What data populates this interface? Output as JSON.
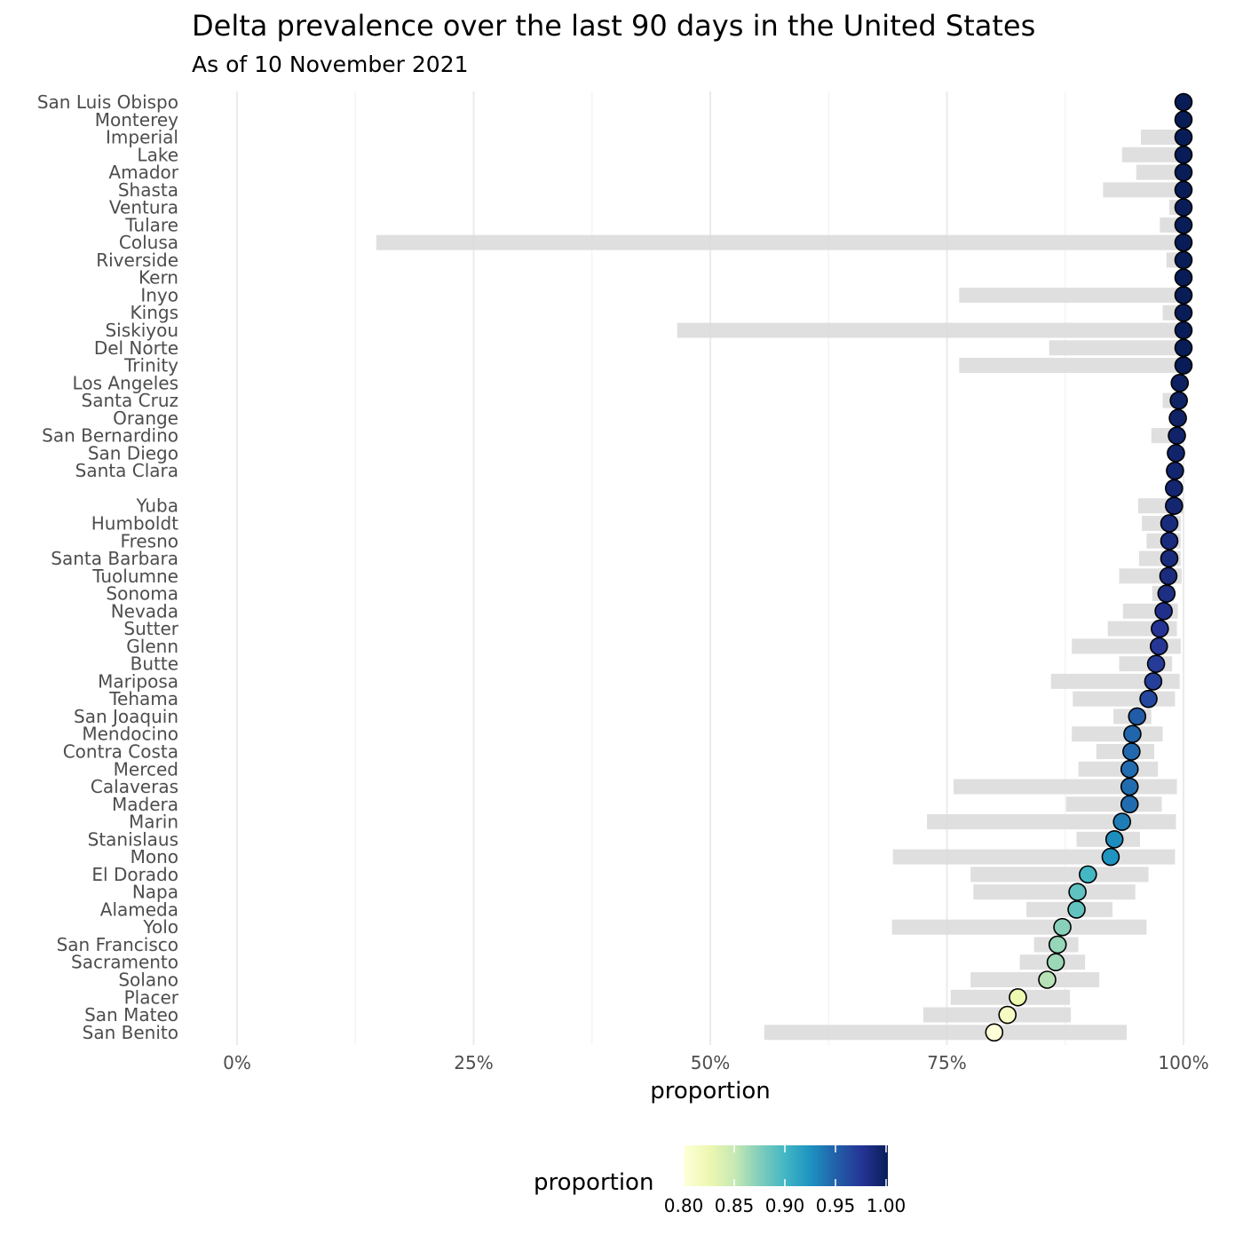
{
  "chart_data": {
    "type": "scatter",
    "title": "Delta prevalence over the last 90 days in the United States",
    "subtitle": "As of 10 November 2021",
    "xlabel": "proportion",
    "ylabel": "",
    "xlim": [
      0,
      1
    ],
    "x_ticks": [
      "0%",
      "25%",
      "50%",
      "75%",
      "100%"
    ],
    "x_tick_values": [
      0,
      0.25,
      0.5,
      0.75,
      1.0
    ],
    "grid": true,
    "legend": {
      "title": "proportion",
      "position": "bottom",
      "range": [
        0.8,
        1.0
      ],
      "ticks": [
        "0.80",
        "0.85",
        "0.90",
        "0.95",
        "1.00"
      ],
      "tick_values": [
        0.8,
        0.85,
        0.9,
        0.95,
        1.0
      ],
      "colors": [
        "#ffffd9",
        "#edf8b1",
        "#c7e9b4",
        "#7fcdbb",
        "#41b6c4",
        "#1d91c0",
        "#225ea8",
        "#253494",
        "#081d58"
      ]
    },
    "ci_color": "#d9d9d9",
    "point_outline": "#000000",
    "series": [
      {
        "label": "San Luis Obispo",
        "value": 1.0,
        "lower": 1.0,
        "upper": 1.0
      },
      {
        "label": "Monterey",
        "value": 1.0,
        "lower": 1.0,
        "upper": 1.0
      },
      {
        "label": "Imperial",
        "value": 1.0,
        "lower": 0.955,
        "upper": 1.0
      },
      {
        "label": "Lake",
        "value": 1.0,
        "lower": 0.935,
        "upper": 1.0
      },
      {
        "label": "Amador",
        "value": 1.0,
        "lower": 0.95,
        "upper": 1.0
      },
      {
        "label": "Shasta",
        "value": 1.0,
        "lower": 0.915,
        "upper": 1.0
      },
      {
        "label": "Ventura",
        "value": 1.0,
        "lower": 0.985,
        "upper": 1.0
      },
      {
        "label": "Tulare",
        "value": 1.0,
        "lower": 0.975,
        "upper": 1.0
      },
      {
        "label": "Colusa",
        "value": 1.0,
        "lower": 0.147,
        "upper": 1.0
      },
      {
        "label": "Riverside",
        "value": 1.0,
        "lower": 0.982,
        "upper": 1.0
      },
      {
        "label": "Kern",
        "value": 1.0,
        "lower": 1.0,
        "upper": 1.0
      },
      {
        "label": "Inyo",
        "value": 1.0,
        "lower": 0.763,
        "upper": 1.0
      },
      {
        "label": "Kings",
        "value": 1.0,
        "lower": 0.978,
        "upper": 1.0
      },
      {
        "label": "Siskiyou",
        "value": 1.0,
        "lower": 0.465,
        "upper": 1.0
      },
      {
        "label": "Del Norte",
        "value": 1.0,
        "lower": 0.858,
        "upper": 1.0
      },
      {
        "label": "Trinity",
        "value": 1.0,
        "lower": 0.763,
        "upper": 1.0
      },
      {
        "label": "Los Angeles",
        "value": 0.996,
        "lower": 0.996,
        "upper": 0.997
      },
      {
        "label": "Santa Cruz",
        "value": 0.995,
        "lower": 0.978,
        "upper": 1.0
      },
      {
        "label": "Orange",
        "value": 0.994,
        "lower": 0.993,
        "upper": 0.995
      },
      {
        "label": "San Bernardino",
        "value": 0.993,
        "lower": 0.966,
        "upper": 1.0
      },
      {
        "label": "San Diego",
        "value": 0.992,
        "lower": 0.991,
        "upper": 0.993
      },
      {
        "label": "Santa Clara",
        "value": 0.991,
        "lower": 0.99,
        "upper": 0.992
      },
      {
        "label": "",
        "value": 0.99,
        "lower": 0.985,
        "upper": 0.994
      },
      {
        "label": "Yuba",
        "value": 0.99,
        "lower": 0.952,
        "upper": 1.0
      },
      {
        "label": "Humboldt",
        "value": 0.985,
        "lower": 0.956,
        "upper": 0.997
      },
      {
        "label": "Fresno",
        "value": 0.985,
        "lower": 0.961,
        "upper": 0.997
      },
      {
        "label": "Santa Barbara",
        "value": 0.985,
        "lower": 0.953,
        "upper": 0.997
      },
      {
        "label": "Tuolumne",
        "value": 0.984,
        "lower": 0.932,
        "upper": 0.998
      },
      {
        "label": "Sonoma",
        "value": 0.982,
        "lower": 0.967,
        "upper": 0.99
      },
      {
        "label": "Nevada",
        "value": 0.979,
        "lower": 0.936,
        "upper": 0.994
      },
      {
        "label": "Sutter",
        "value": 0.975,
        "lower": 0.92,
        "upper": 0.993
      },
      {
        "label": "Glenn",
        "value": 0.974,
        "lower": 0.882,
        "upper": 0.997
      },
      {
        "label": "Butte",
        "value": 0.971,
        "lower": 0.932,
        "upper": 0.988
      },
      {
        "label": "Mariposa",
        "value": 0.968,
        "lower": 0.86,
        "upper": 0.996
      },
      {
        "label": "Tehama",
        "value": 0.963,
        "lower": 0.883,
        "upper": 0.991
      },
      {
        "label": "San Joaquin",
        "value": 0.951,
        "lower": 0.926,
        "upper": 0.966
      },
      {
        "label": "Mendocino",
        "value": 0.946,
        "lower": 0.882,
        "upper": 0.978
      },
      {
        "label": "Contra Costa",
        "value": 0.945,
        "lower": 0.908,
        "upper": 0.969
      },
      {
        "label": "Merced",
        "value": 0.943,
        "lower": 0.889,
        "upper": 0.973
      },
      {
        "label": "Calaveras",
        "value": 0.943,
        "lower": 0.757,
        "upper": 0.993
      },
      {
        "label": "Madera",
        "value": 0.943,
        "lower": 0.876,
        "upper": 0.977
      },
      {
        "label": "Marin",
        "value": 0.935,
        "lower": 0.729,
        "upper": 0.992
      },
      {
        "label": "Stanislaus",
        "value": 0.927,
        "lower": 0.887,
        "upper": 0.954
      },
      {
        "label": "Mono",
        "value": 0.923,
        "lower": 0.693,
        "upper": 0.991
      },
      {
        "label": "El Dorado",
        "value": 0.899,
        "lower": 0.775,
        "upper": 0.963
      },
      {
        "label": "Napa",
        "value": 0.888,
        "lower": 0.778,
        "upper": 0.949
      },
      {
        "label": "Alameda",
        "value": 0.887,
        "lower": 0.834,
        "upper": 0.925
      },
      {
        "label": "Yolo",
        "value": 0.872,
        "lower": 0.692,
        "upper": 0.961
      },
      {
        "label": "San Francisco",
        "value": 0.867,
        "lower": 0.842,
        "upper": 0.889
      },
      {
        "label": "Sacramento",
        "value": 0.865,
        "lower": 0.827,
        "upper": 0.896
      },
      {
        "label": "Solano",
        "value": 0.856,
        "lower": 0.775,
        "upper": 0.911
      },
      {
        "label": "Placer",
        "value": 0.825,
        "lower": 0.754,
        "upper": 0.88
      },
      {
        "label": "San Mateo",
        "value": 0.814,
        "lower": 0.725,
        "upper": 0.881
      },
      {
        "label": "San Benito",
        "value": 0.8,
        "lower": 0.557,
        "upper": 0.94
      }
    ]
  }
}
